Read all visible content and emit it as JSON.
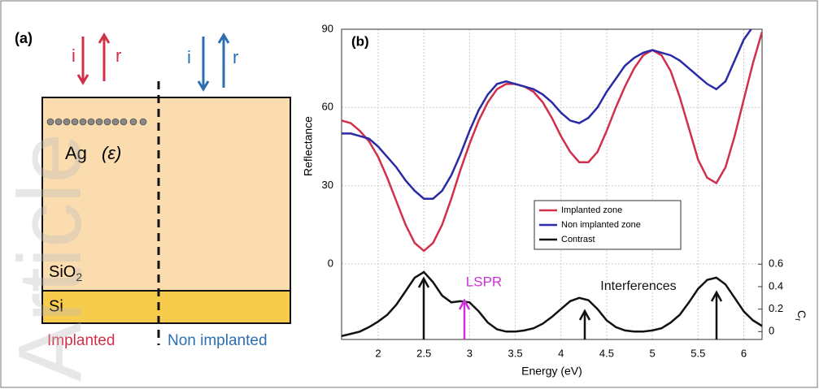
{
  "watermark": "Article",
  "panel_a": {
    "label": "(a)",
    "incident_left": "i",
    "reflected_left": "r",
    "incident_right": "i",
    "reflected_right": "r",
    "ag_label": "Ag",
    "epsilon_label": "(ε)",
    "sio2_label": "SiO",
    "sio2_sub": "2",
    "si_label": "Si",
    "implanted_label": "Implanted",
    "non_implanted_label": "Non implanted"
  },
  "chart_data": {
    "type": "line",
    "panel_label": "(b)",
    "xlabel": "Energy (eV)",
    "ylabel": "Reflectance",
    "y2label": "C",
    "y2label_sub": "r",
    "x": [
      1.6,
      1.7,
      1.8,
      1.9,
      2.0,
      2.1,
      2.2,
      2.3,
      2.4,
      2.5,
      2.6,
      2.7,
      2.8,
      2.9,
      3.0,
      3.1,
      3.2,
      3.3,
      3.4,
      3.5,
      3.6,
      3.7,
      3.8,
      3.9,
      4.0,
      4.1,
      4.2,
      4.3,
      4.4,
      4.5,
      4.6,
      4.7,
      4.8,
      4.9,
      5.0,
      5.1,
      5.2,
      5.3,
      5.4,
      5.5,
      5.6,
      5.7,
      5.8,
      5.9,
      6.0,
      6.1,
      6.2
    ],
    "series": [
      {
        "name": "Implanted zone",
        "color": "#d0304a",
        "values": [
          55,
          54,
          51,
          47,
          41,
          33,
          24,
          15,
          8,
          5,
          8,
          15,
          25,
          36,
          46,
          55,
          62,
          67,
          69,
          69,
          68,
          66,
          62,
          56,
          49,
          43,
          39,
          39,
          43,
          51,
          60,
          68,
          75,
          80,
          82,
          80,
          74,
          64,
          52,
          40,
          33,
          31,
          37,
          49,
          63,
          77,
          89
        ]
      },
      {
        "name": "Non implanted zone",
        "color": "#2a2aa8",
        "values": [
          50,
          50,
          49,
          48,
          45,
          41,
          37,
          32,
          28,
          25,
          25,
          28,
          34,
          42,
          51,
          59,
          65,
          69,
          70,
          69,
          68,
          67,
          65,
          62,
          58,
          55,
          54,
          56,
          60,
          66,
          71,
          76,
          79,
          81,
          82,
          81,
          80,
          78,
          75,
          72,
          69,
          67,
          70,
          78,
          86,
          91,
          97
        ]
      },
      {
        "name": "Contrast",
        "color": "#111111",
        "axis": "y2",
        "values": [
          -0.04,
          -0.02,
          0.0,
          0.04,
          0.09,
          0.15,
          0.24,
          0.36,
          0.48,
          0.53,
          0.44,
          0.32,
          0.26,
          0.27,
          0.26,
          0.18,
          0.08,
          0.02,
          0.0,
          0.0,
          0.01,
          0.03,
          0.07,
          0.13,
          0.2,
          0.27,
          0.3,
          0.28,
          0.2,
          0.1,
          0.04,
          0.01,
          0.0,
          0.0,
          0.01,
          0.03,
          0.08,
          0.15,
          0.26,
          0.38,
          0.46,
          0.48,
          0.42,
          0.3,
          0.18,
          0.1,
          0.05
        ]
      }
    ],
    "xlim": [
      1.6,
      6.2
    ],
    "xticks": [
      2,
      2.5,
      3,
      3.5,
      4,
      4.5,
      5,
      5.5,
      6
    ],
    "ylim": [
      -29,
      90
    ],
    "yticks": [
      0,
      30,
      60,
      90
    ],
    "y2lim": [
      -0.07,
      2.69
    ],
    "y2ticks": [
      0,
      0.2,
      0.4,
      0.6
    ],
    "grid": true,
    "legend": "center right",
    "annotations": [
      {
        "text": "LSPR",
        "color": "#d030d8"
      },
      {
        "text": "Interferences",
        "color": "#111111"
      }
    ]
  }
}
